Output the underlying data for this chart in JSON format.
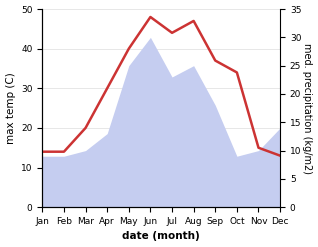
{
  "months": [
    "Jan",
    "Feb",
    "Mar",
    "Apr",
    "May",
    "Jun",
    "Jul",
    "Aug",
    "Sep",
    "Oct",
    "Nov",
    "Dec"
  ],
  "temperature": [
    14,
    14,
    20,
    30,
    40,
    48,
    44,
    47,
    37,
    34,
    15,
    13
  ],
  "precipitation": [
    9,
    9,
    10,
    13,
    25,
    30,
    23,
    25,
    18,
    9,
    10,
    14
  ],
  "temp_color": "#cc3333",
  "precip_color": "#c5cdf0",
  "background_color": "#ffffff",
  "ylabel_left": "max temp (C)",
  "ylabel_right": "med. precipitation (kg/m2)",
  "xlabel": "date (month)",
  "ylim_left": [
    0,
    50
  ],
  "ylim_right": [
    0,
    35
  ],
  "label_fontsize": 7.5,
  "tick_fontsize": 6.5,
  "linewidth": 1.8
}
